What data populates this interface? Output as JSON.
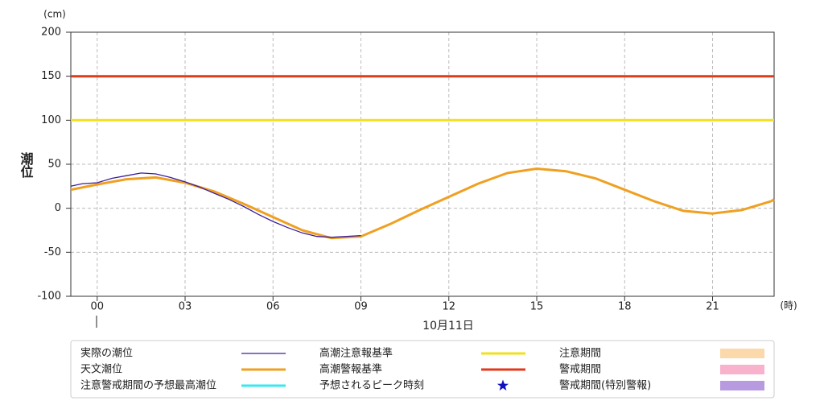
{
  "chart_data": {
    "type": "line",
    "y_label": "潮位",
    "y_unit": "(cm)",
    "x_unit": "(時)",
    "date": "10月11日",
    "xlim": [
      -0.9,
      23.1
    ],
    "ylim": [
      -100,
      200
    ],
    "yticks": [
      -100,
      -50,
      0,
      50,
      100,
      150,
      200
    ],
    "xticks": [
      {
        "value": 0,
        "label": "00"
      },
      {
        "value": 3,
        "label": "03"
      },
      {
        "value": 6,
        "label": "06"
      },
      {
        "value": 9,
        "label": "09"
      },
      {
        "value": 12,
        "label": "12"
      },
      {
        "value": 15,
        "label": "15"
      },
      {
        "value": 18,
        "label": "18"
      },
      {
        "value": 21,
        "label": "21"
      }
    ],
    "grid": true,
    "series": [
      {
        "name": "実際の潮位",
        "color": "#3c1e9e",
        "x": [
          -0.9,
          -0.5,
          0,
          0.5,
          1,
          1.5,
          2,
          2.5,
          3,
          3.5,
          4,
          4.5,
          5,
          5.5,
          6,
          6.5,
          7,
          7.5,
          8,
          8.5,
          9
        ],
        "values": [
          25,
          28,
          29,
          34,
          37,
          40,
          39,
          35,
          30,
          24,
          17,
          10,
          2,
          -7,
          -15,
          -22,
          -28,
          -32,
          -33,
          -32,
          -31
        ]
      },
      {
        "name": "天文潮位",
        "color": "#f0a020",
        "x": [
          -0.9,
          0,
          1,
          2,
          3,
          4,
          5,
          6,
          7,
          8,
          9,
          10,
          11,
          12,
          13,
          14,
          15,
          16,
          17,
          18,
          19,
          20,
          21,
          22,
          23,
          23.1
        ],
        "values": [
          21,
          27,
          33,
          35,
          29,
          19,
          5,
          -10,
          -25,
          -34,
          -32,
          -18,
          -2,
          13,
          28,
          40,
          45,
          42,
          34,
          21,
          8,
          -3,
          -6,
          -2,
          8,
          10
        ]
      },
      {
        "name": "注意警戒期間の予想最高潮位",
        "color": "#38e8f0",
        "x": [],
        "values": []
      },
      {
        "name": "高潮注意報基準",
        "color": "#f0e020",
        "x": [
          -0.9,
          23.1
        ],
        "values": [
          100,
          100
        ]
      },
      {
        "name": "高潮警報基準",
        "color": "#e03a1a",
        "x": [
          -0.9,
          23.1
        ],
        "values": [
          150,
          150
        ]
      }
    ],
    "markers": [
      {
        "name": "予想されるピーク時刻",
        "color": "#1010c0"
      }
    ],
    "periods": [
      {
        "name": "注意期間",
        "color": "#fcd9aa"
      },
      {
        "name": "警戒期間",
        "color": "#f9b2cc"
      },
      {
        "name": "警戒期間(特別警報)",
        "color": "#b89ae0"
      }
    ]
  }
}
